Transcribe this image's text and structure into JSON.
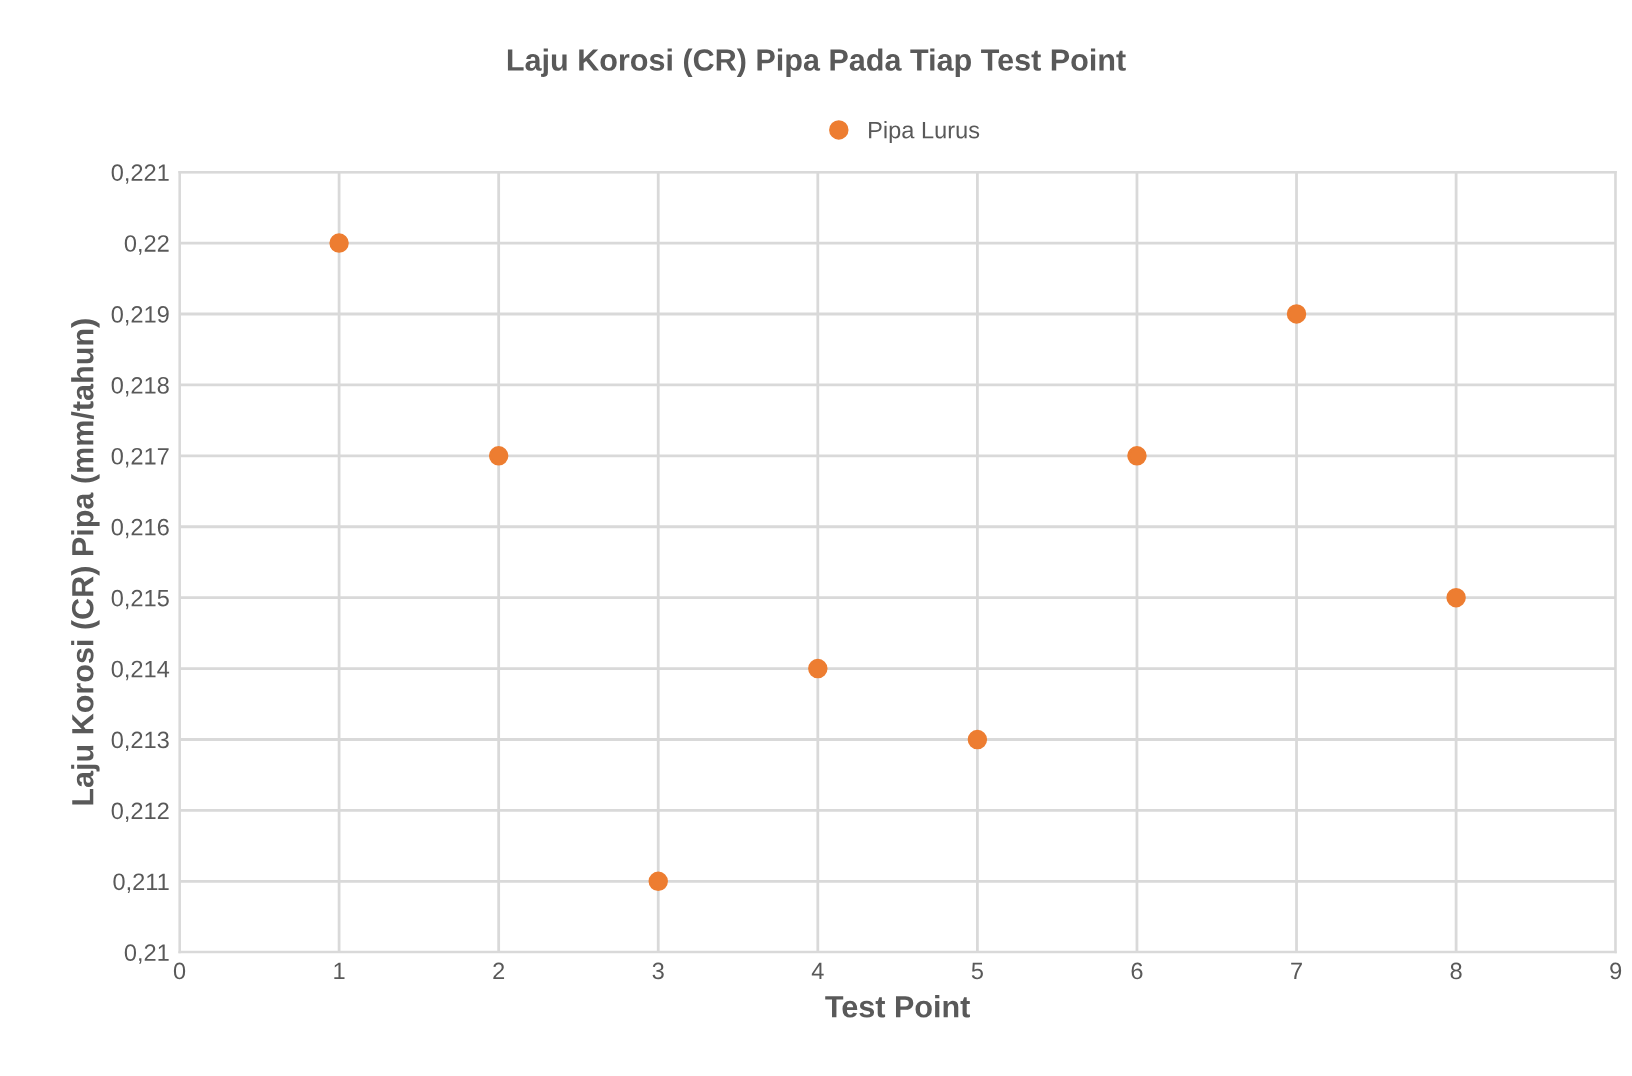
{
  "chart_data": {
    "type": "scatter",
    "title": "Laju Korosi (CR) Pipa Pada Tiap Test Point",
    "xlabel": "Test Point",
    "ylabel": "Laju Korosi (CR) Pipa (mm/tahun)",
    "x": [
      1,
      2,
      3,
      4,
      5,
      6,
      7,
      8
    ],
    "series": [
      {
        "name": "Pipa Lurus",
        "color": "#ed7d31",
        "values": [
          0.22,
          0.217,
          0.211,
          0.214,
          0.213,
          0.217,
          0.219,
          0.215
        ]
      }
    ],
    "xlim": [
      0,
      9
    ],
    "xticks": [
      0,
      1,
      2,
      3,
      4,
      5,
      6,
      7,
      8,
      9
    ],
    "ylim": [
      0.21,
      0.221
    ],
    "yticks": [
      {
        "value": 0.21,
        "label": "0,21"
      },
      {
        "value": 0.211,
        "label": "0,211"
      },
      {
        "value": 0.212,
        "label": "0,212"
      },
      {
        "value": 0.213,
        "label": "0,213"
      },
      {
        "value": 0.214,
        "label": "0,214"
      },
      {
        "value": 0.215,
        "label": "0,215"
      },
      {
        "value": 0.216,
        "label": "0,216"
      },
      {
        "value": 0.217,
        "label": "0,217"
      },
      {
        "value": 0.218,
        "label": "0,218"
      },
      {
        "value": 0.219,
        "label": "0,219"
      },
      {
        "value": 0.22,
        "label": "0,22"
      },
      {
        "value": 0.221,
        "label": "0,221"
      }
    ],
    "grid": true,
    "legend": "top",
    "marker": "circle"
  }
}
